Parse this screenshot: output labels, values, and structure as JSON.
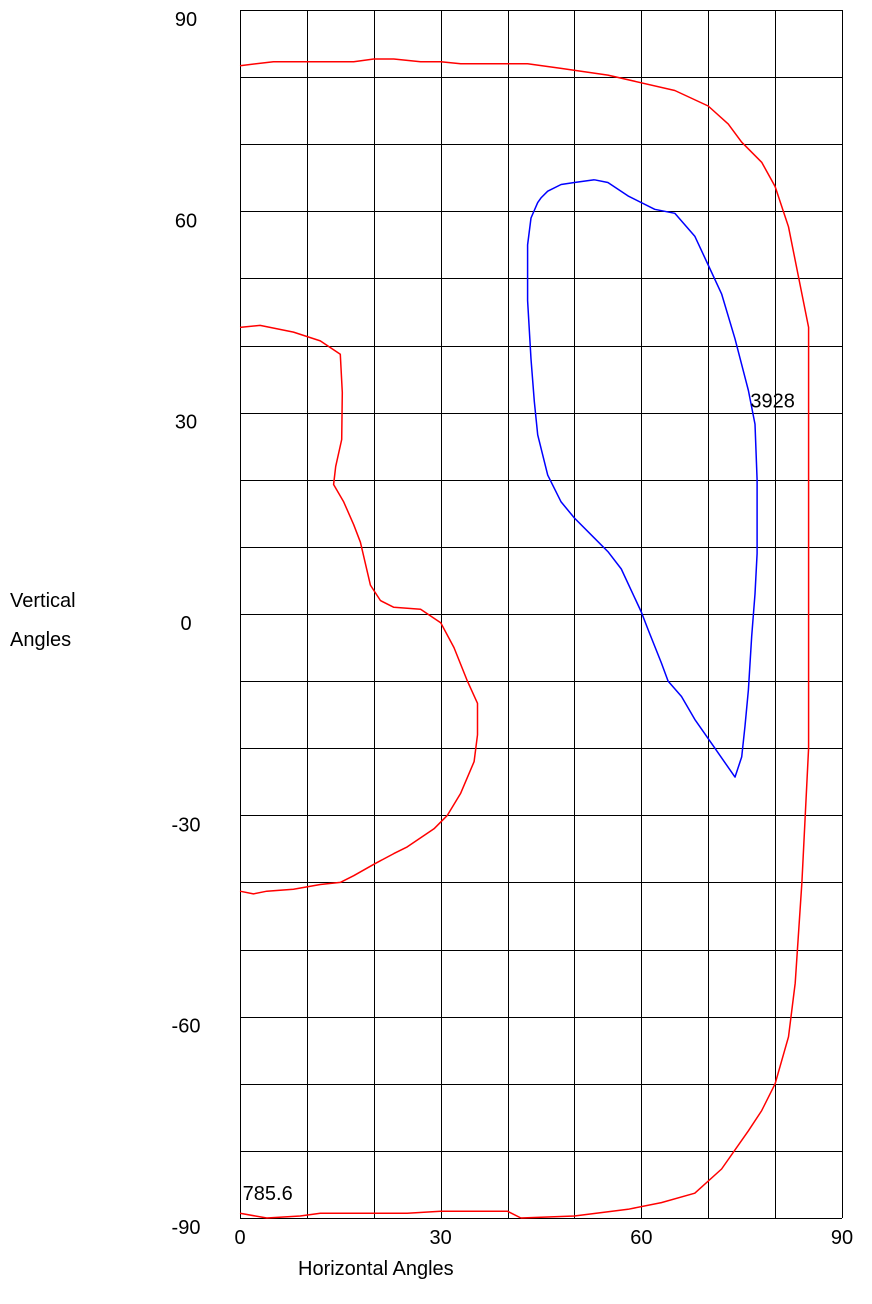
{
  "chart_data": {
    "type": "line",
    "xlabel": "Horizontal Angles",
    "ylabel": [
      "Vertical",
      "Angles"
    ],
    "xlim": [
      0,
      90
    ],
    "ylim": [
      -90,
      90
    ],
    "grid": true,
    "x_ticks": [
      0,
      30,
      60,
      90
    ],
    "y_ticks": [
      90,
      60,
      30,
      0,
      -30,
      -60,
      -90
    ],
    "colors": {
      "outer": "#ff0000",
      "inner": "#0000ff"
    },
    "series": [
      {
        "label": "785.6",
        "color": "#ff0000",
        "label_at": [
          0.4,
          -87.3
        ],
        "segments": [
          [
            [
              0,
              81.7
            ],
            [
              5,
              82.3
            ],
            [
              17,
              82.3
            ],
            [
              20,
              82.7
            ],
            [
              23,
              82.7
            ],
            [
              27,
              82.3
            ],
            [
              30,
              82.3
            ],
            [
              33,
              82
            ],
            [
              43,
              82
            ],
            [
              48,
              81.3
            ],
            [
              55,
              80.3
            ],
            [
              65,
              78
            ],
            [
              70,
              75.7
            ],
            [
              73,
              73
            ],
            [
              75,
              70.3
            ],
            [
              78,
              67.3
            ],
            [
              80,
              63.7
            ],
            [
              82,
              57.7
            ],
            [
              84,
              47.7
            ],
            [
              85,
              42.7
            ],
            [
              85,
              28
            ],
            [
              85,
              -20
            ],
            [
              84,
              -40
            ],
            [
              83,
              -55
            ],
            [
              82,
              -63
            ],
            [
              80,
              -70
            ],
            [
              78,
              -74
            ],
            [
              76,
              -77
            ],
            [
              72,
              -82.7
            ],
            [
              68,
              -86.3
            ],
            [
              63,
              -87.7
            ],
            [
              58,
              -88.7
            ],
            [
              50,
              -89.7
            ],
            [
              42,
              -90
            ]
          ],
          [
            [
              0,
              -89.3
            ],
            [
              4,
              -90
            ],
            [
              9,
              -89.7
            ],
            [
              12,
              -89.3
            ],
            [
              15,
              -89.3
            ],
            [
              20,
              -89.3
            ],
            [
              25,
              -89.3
            ],
            [
              30,
              -89
            ],
            [
              34,
              -89
            ],
            [
              40,
              -89
            ],
            [
              42,
              -90
            ]
          ],
          [
            [
              0,
              42.7
            ],
            [
              3,
              43
            ],
            [
              8,
              42
            ],
            [
              12,
              40.7
            ],
            [
              15,
              38.7
            ],
            [
              15.3,
              33
            ],
            [
              15.2,
              26
            ],
            [
              14.3,
              22
            ],
            [
              14,
              19.3
            ],
            [
              15.5,
              16.7
            ],
            [
              17,
              13.3
            ],
            [
              18,
              10.7
            ],
            [
              19.5,
              4.3
            ],
            [
              21,
              2
            ],
            [
              23,
              1
            ],
            [
              27,
              0.7
            ],
            [
              30,
              -1.3
            ],
            [
              32,
              -5
            ],
            [
              34,
              -10
            ],
            [
              35.5,
              -13.3
            ],
            [
              35.5,
              -18
            ],
            [
              35,
              -22
            ],
            [
              33,
              -26.7
            ],
            [
              31,
              -30
            ],
            [
              29,
              -32
            ],
            [
              25,
              -34.7
            ],
            [
              23,
              -35.7
            ],
            [
              20,
              -37.3
            ],
            [
              17,
              -39
            ],
            [
              15,
              -40
            ],
            [
              12,
              -40.3
            ],
            [
              8,
              -41
            ],
            [
              4,
              -41.3
            ],
            [
              2,
              -41.7
            ],
            [
              0,
              -41.3
            ]
          ]
        ]
      },
      {
        "label": "3928",
        "color": "#0000ff",
        "label_at": [
          76.3,
          30.8
        ],
        "segments": [
          [
            [
              53,
              64.7
            ],
            [
              55,
              64.3
            ],
            [
              58,
              62.3
            ],
            [
              62,
              60.3
            ],
            [
              65,
              59.7
            ],
            [
              68,
              56.3
            ],
            [
              70,
              52
            ],
            [
              72,
              47.7
            ],
            [
              74,
              41
            ],
            [
              76,
              33.3
            ],
            [
              77,
              28.3
            ],
            [
              77.3,
              20
            ],
            [
              77.3,
              9
            ],
            [
              77,
              3
            ],
            [
              76.5,
              -3.3
            ],
            [
              76,
              -11.3
            ],
            [
              75.5,
              -16.7
            ],
            [
              75,
              -21.3
            ],
            [
              74,
              -24.3
            ],
            [
              71,
              -20
            ],
            [
              68,
              -15.7
            ],
            [
              66,
              -12.3
            ],
            [
              64,
              -10
            ],
            [
              63,
              -7.3
            ],
            [
              61,
              -2.3
            ],
            [
              60,
              0.3
            ],
            [
              57,
              6.7
            ],
            [
              55,
              9.3
            ],
            [
              53,
              11.3
            ],
            [
              50,
              14.3
            ],
            [
              48,
              16.7
            ],
            [
              46,
              20.7
            ],
            [
              44.5,
              26.7
            ],
            [
              44,
              31.7
            ],
            [
              43.5,
              38
            ],
            [
              43,
              46.7
            ],
            [
              43,
              55
            ],
            [
              43.5,
              59
            ],
            [
              44.5,
              61.3
            ],
            [
              45,
              62
            ],
            [
              46,
              63
            ],
            [
              48,
              64
            ],
            [
              50,
              64.3
            ],
            [
              53,
              64.7
            ]
          ]
        ]
      }
    ]
  }
}
